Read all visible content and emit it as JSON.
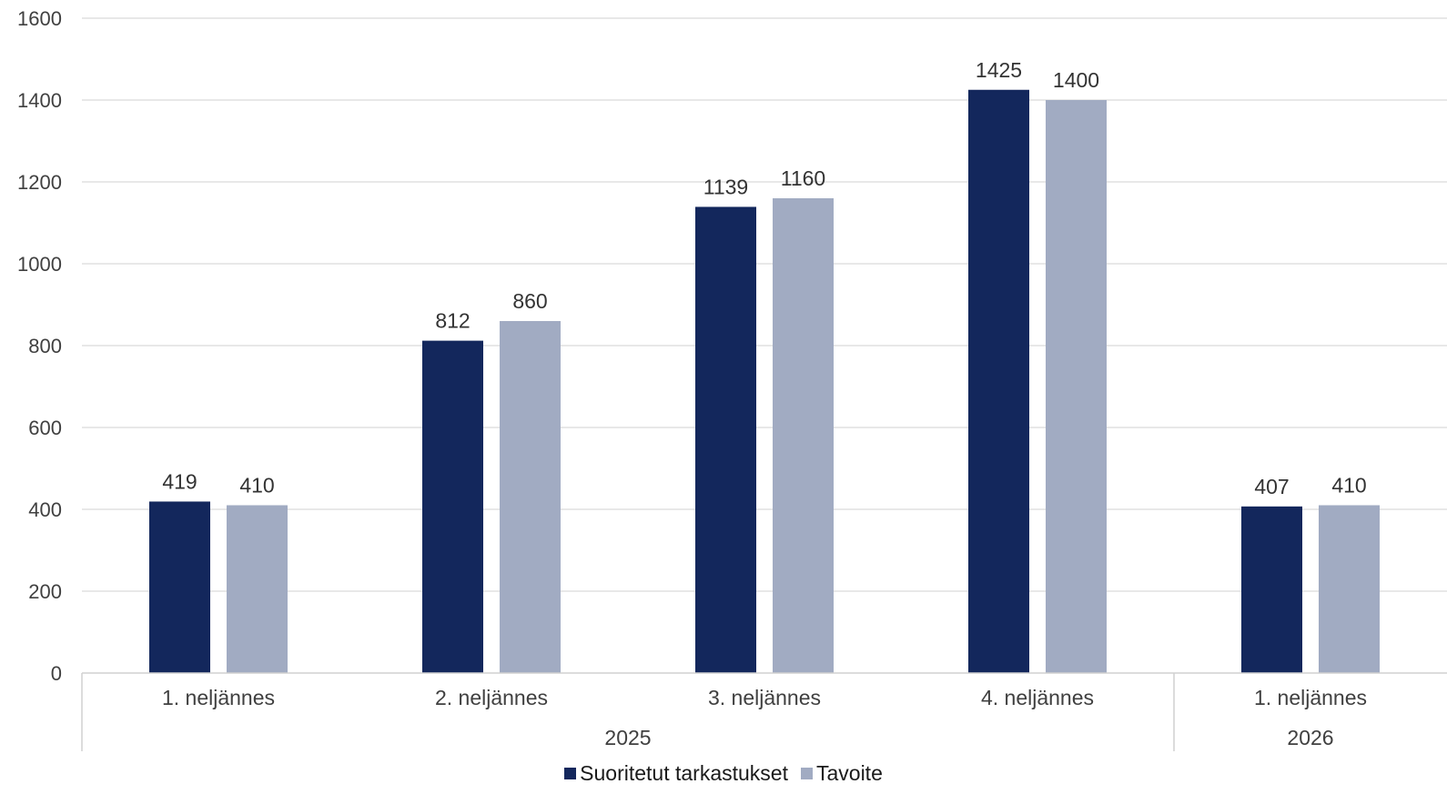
{
  "chart_data": {
    "type": "bar",
    "title": "",
    "xlabel": "",
    "ylabel": "",
    "ylim": [
      0,
      1600
    ],
    "yticks": [
      "0",
      "200",
      "400",
      "600",
      "800",
      "1000",
      "1200",
      "1400",
      "1600"
    ],
    "grid": true,
    "legend_position": "bottom",
    "categories": [
      "1. neljännes",
      "2. neljännes",
      "3. neljännes",
      "4. neljännes",
      "1. neljännes"
    ],
    "groups": [
      {
        "label": "2025",
        "count": 4
      },
      {
        "label": "2026",
        "count": 1
      }
    ],
    "series": [
      {
        "name": "Suoritetut tarkastukset",
        "color": "#13275c",
        "values": [
          419,
          812,
          1139,
          1425,
          407
        ]
      },
      {
        "name": "Tavoite",
        "color": "#a1abc2",
        "values": [
          410,
          860,
          1160,
          1400,
          410
        ]
      }
    ]
  }
}
